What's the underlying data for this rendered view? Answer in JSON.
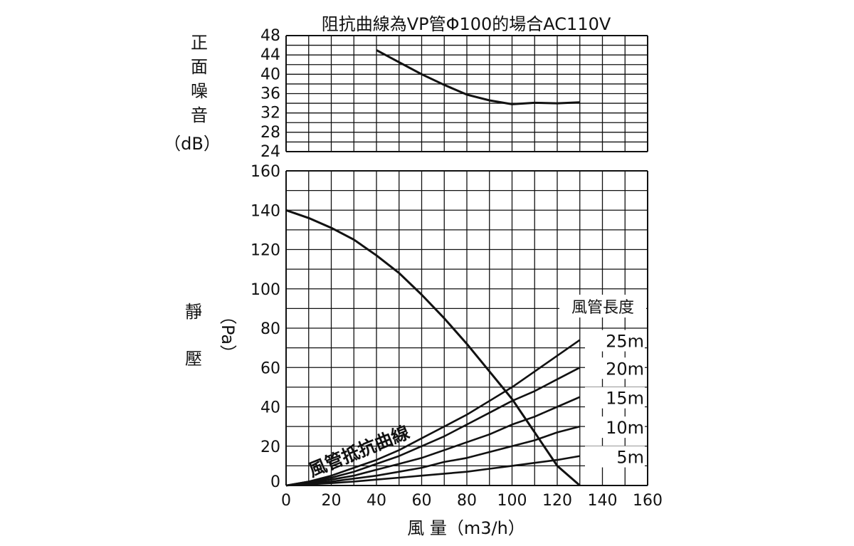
{
  "chart_data": [
    {
      "type": "line",
      "title": "阻抗曲線為VP管Φ100的場合AC110V",
      "ylabel_chars": [
        "正",
        "面",
        "噪",
        "音"
      ],
      "yunit": "（dB）",
      "xlim": [
        0,
        160
      ],
      "ylim": [
        24,
        48
      ],
      "yticks": [
        "24",
        "28",
        "32",
        "36",
        "40",
        "44",
        "48"
      ],
      "grid": true,
      "series": [
        {
          "x": [
            40,
            50,
            60,
            70,
            80,
            90,
            100,
            110,
            120,
            130
          ],
          "values": [
            45,
            42.5,
            40,
            37.8,
            35.8,
            34.6,
            33.8,
            34.1,
            34.0,
            34.2
          ]
        }
      ]
    },
    {
      "type": "line",
      "ylabel_chars": [
        "靜",
        "壓"
      ],
      "yunit": "（Pa）",
      "xlabel": "風 量（m3/h）",
      "xlim": [
        0,
        160
      ],
      "ylim": [
        0,
        160
      ],
      "xticks": [
        "0",
        "20",
        "40",
        "60",
        "80",
        "100",
        "120",
        "140",
        "160"
      ],
      "yticks": [
        "0",
        "20",
        "40",
        "60",
        "80",
        "100",
        "120",
        "140",
        "160"
      ],
      "grid": true,
      "legend_title": "風管長度",
      "annotation": "風管抵抗曲線",
      "series": [
        {
          "x": [
            0,
            10,
            20,
            30,
            40,
            50,
            60,
            70,
            80,
            90,
            100,
            110,
            120,
            130
          ],
          "values": [
            140,
            136,
            131,
            125,
            117,
            108,
            97,
            85,
            72,
            58,
            44,
            27,
            10,
            0
          ]
        },
        {
          "name": "25m",
          "x": [
            0,
            10,
            20,
            30,
            40,
            50,
            60,
            70,
            80,
            90,
            100,
            110,
            120,
            130
          ],
          "values": [
            0,
            2,
            5,
            9,
            13,
            18,
            24,
            30,
            36,
            43,
            50,
            58,
            66,
            74
          ]
        },
        {
          "name": "20m",
          "x": [
            0,
            10,
            20,
            30,
            40,
            50,
            60,
            70,
            80,
            90,
            100,
            110,
            120,
            130
          ],
          "values": [
            0,
            2,
            4,
            7,
            11,
            15,
            20,
            25,
            31,
            37,
            43,
            48,
            54,
            60
          ]
        },
        {
          "name": "15m",
          "x": [
            0,
            10,
            20,
            30,
            40,
            50,
            60,
            70,
            80,
            90,
            100,
            110,
            120,
            130
          ],
          "values": [
            0,
            1.5,
            3,
            5,
            8,
            11,
            14,
            18,
            22,
            26,
            31,
            35,
            40,
            45
          ]
        },
        {
          "name": "10m",
          "x": [
            0,
            10,
            20,
            30,
            40,
            50,
            60,
            70,
            80,
            90,
            100,
            110,
            120,
            130
          ],
          "values": [
            0,
            1,
            2,
            3.5,
            5,
            7,
            9,
            12,
            14,
            17,
            20,
            23,
            27,
            30
          ]
        },
        {
          "name": "5m",
          "x": [
            0,
            10,
            20,
            30,
            40,
            50,
            60,
            70,
            80,
            90,
            100,
            110,
            120,
            130
          ],
          "values": [
            0,
            0.6,
            1.2,
            2,
            3,
            4,
            5,
            6,
            7,
            8.5,
            10,
            11.5,
            13,
            15
          ]
        }
      ]
    }
  ]
}
